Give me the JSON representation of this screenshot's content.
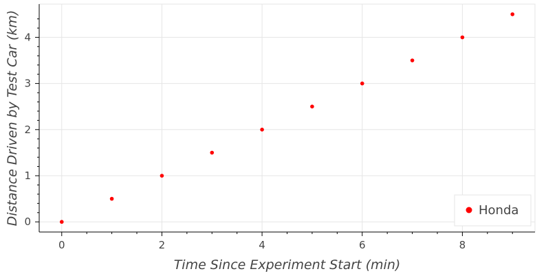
{
  "chart_data": {
    "type": "scatter",
    "xlabel": "Time Since Experiment Start (min)",
    "ylabel": "Distance Driven by Test Car (km)",
    "xlim": [
      -0.45,
      9.45
    ],
    "ylim": [
      -0.22,
      4.72
    ],
    "grid": true,
    "legend_position": "bottom-right",
    "x_ticks": [
      0,
      2,
      4,
      6,
      8
    ],
    "x_tick_labels": [
      "0",
      "2",
      "4",
      "6",
      "8"
    ],
    "y_ticks": [
      0,
      1,
      2,
      3,
      4
    ],
    "y_tick_labels": [
      "0",
      "1",
      "2",
      "3",
      "4"
    ],
    "series": [
      {
        "name": "Honda",
        "color": "#ff0000",
        "x": [
          0,
          1,
          2,
          3,
          4,
          5,
          6,
          7,
          8,
          9
        ],
        "y": [
          0,
          0.5,
          1,
          1.5,
          2,
          2.5,
          3,
          3.5,
          4,
          4.5
        ]
      }
    ]
  }
}
